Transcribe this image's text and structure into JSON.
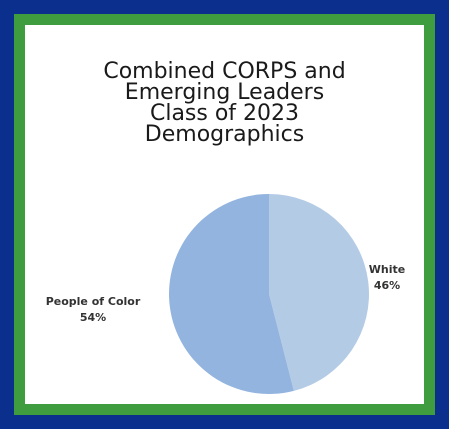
{
  "colors": {
    "outer_border": "#0a2f8c",
    "inner_border": "#3f9c3f",
    "background": "#ffffff"
  },
  "chart_data": {
    "type": "pie",
    "title_lines": [
      "Combined CORPS and",
      "Emerging Leaders",
      "Class of 2023",
      "Demographics"
    ],
    "slices": [
      {
        "label": "White",
        "percent_label": "46%",
        "value": 46,
        "color": "#b4cbe6"
      },
      {
        "label": "People of Color",
        "percent_label": "54%",
        "value": 54,
        "color": "#93b4df"
      }
    ],
    "start_angle_deg": 0,
    "direction": "clockwise"
  }
}
